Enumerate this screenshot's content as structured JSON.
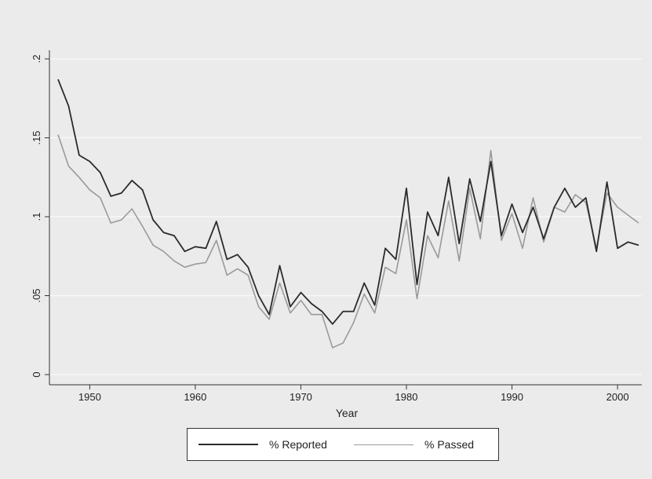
{
  "colors": {
    "background": "#ebebeb",
    "plot_background": "#ebebeb",
    "gridline": "#f7f7f7",
    "axis": "#333333",
    "reported": "#2b2b2b",
    "passed": "#9a9a9a"
  },
  "chart_data": {
    "type": "line",
    "title": "",
    "xlabel": "Year",
    "ylabel": "",
    "xlim": [
      1947,
      2002
    ],
    "ylim": [
      0,
      0.2
    ],
    "x_ticks": [
      1950,
      1960,
      1970,
      1980,
      1990,
      2000
    ],
    "x_tick_labels": [
      "1950",
      "1960",
      "1970",
      "1980",
      "1990",
      "2000"
    ],
    "y_ticks": [
      0,
      0.05,
      0.1,
      0.15,
      0.2
    ],
    "y_tick_labels": [
      "0",
      ".05",
      ".1",
      ".15",
      ".2"
    ],
    "grid": true,
    "legend_position": "bottom",
    "x": [
      1947,
      1948,
      1949,
      1950,
      1951,
      1952,
      1953,
      1954,
      1955,
      1956,
      1957,
      1958,
      1959,
      1960,
      1961,
      1962,
      1963,
      1964,
      1965,
      1966,
      1967,
      1968,
      1969,
      1970,
      1971,
      1972,
      1973,
      1974,
      1975,
      1976,
      1977,
      1978,
      1979,
      1980,
      1981,
      1982,
      1983,
      1984,
      1985,
      1986,
      1987,
      1988,
      1989,
      1990,
      1991,
      1992,
      1993,
      1994,
      1995,
      1996,
      1997,
      1998,
      1999,
      2000,
      2001,
      2002
    ],
    "series": [
      {
        "name": "% Reported",
        "color": "#2b2b2b",
        "values": [
          0.187,
          0.17,
          0.139,
          0.135,
          0.128,
          0.113,
          0.115,
          0.123,
          0.117,
          0.098,
          0.09,
          0.088,
          0.078,
          0.081,
          0.08,
          0.097,
          0.073,
          0.076,
          0.068,
          0.05,
          0.038,
          0.069,
          0.043,
          0.052,
          0.045,
          0.04,
          0.032,
          0.04,
          0.04,
          0.058,
          0.044,
          0.08,
          0.073,
          0.118,
          0.057,
          0.103,
          0.088,
          0.125,
          0.083,
          0.124,
          0.097,
          0.135,
          0.088,
          0.108,
          0.09,
          0.106,
          0.086,
          0.106,
          0.118,
          0.106,
          0.112,
          0.078,
          0.122,
          0.08,
          0.084,
          0.082
        ]
      },
      {
        "name": "% Passed",
        "color": "#9a9a9a",
        "values": [
          0.152,
          0.132,
          0.125,
          0.117,
          0.112,
          0.096,
          0.098,
          0.105,
          0.094,
          0.082,
          0.078,
          0.072,
          0.068,
          0.07,
          0.071,
          0.085,
          0.063,
          0.067,
          0.063,
          0.043,
          0.035,
          0.058,
          0.039,
          0.047,
          0.038,
          0.038,
          0.017,
          0.02,
          0.033,
          0.051,
          0.039,
          0.068,
          0.064,
          0.098,
          0.048,
          0.088,
          0.074,
          0.11,
          0.072,
          0.118,
          0.086,
          0.142,
          0.085,
          0.102,
          0.08,
          0.112,
          0.084,
          0.106,
          0.103,
          0.114,
          0.109,
          0.08,
          0.115,
          0.106,
          0.101,
          0.096
        ]
      }
    ]
  }
}
